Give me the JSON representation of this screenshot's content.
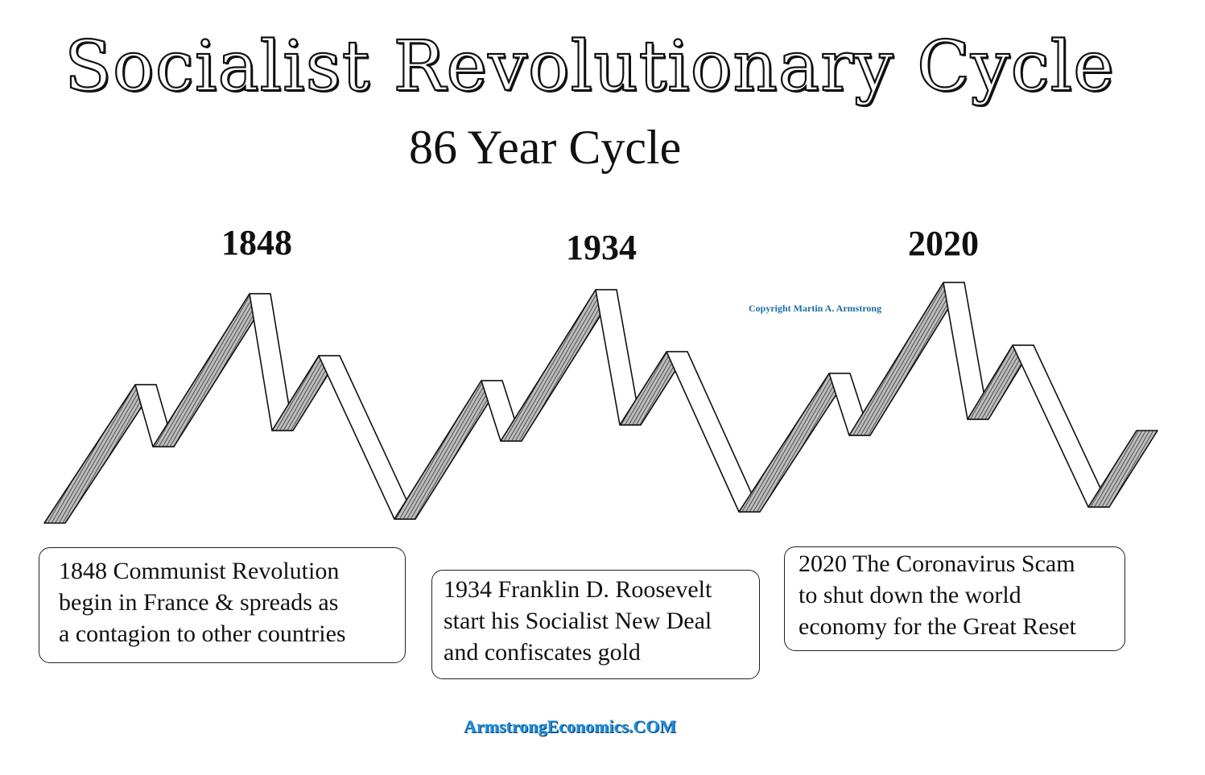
{
  "title": "Socialist Revolutionary Cycle",
  "subtitle": "86 Year Cycle",
  "peaks": [
    {
      "year": "1848",
      "description": [
        "1848 Communist Revolution",
        "begin in France & spreads as",
        "a contagion to other countries"
      ]
    },
    {
      "year": "1934",
      "description": [
        "1934 Franklin D. Roosevelt",
        "start his Socialist New Deal",
        "and confiscates gold"
      ]
    },
    {
      "year": "2020",
      "description": [
        "2020 The Coronavirus Scam",
        "to shut down the world",
        "economy for the Great Reset"
      ]
    }
  ],
  "copyright": "Copyright Martin A. Armstrong",
  "footer": "ArmstrongEconomics.COM",
  "colors": {
    "line": "#111111",
    "hatch": "#555555",
    "accent": "#1e90e0"
  }
}
